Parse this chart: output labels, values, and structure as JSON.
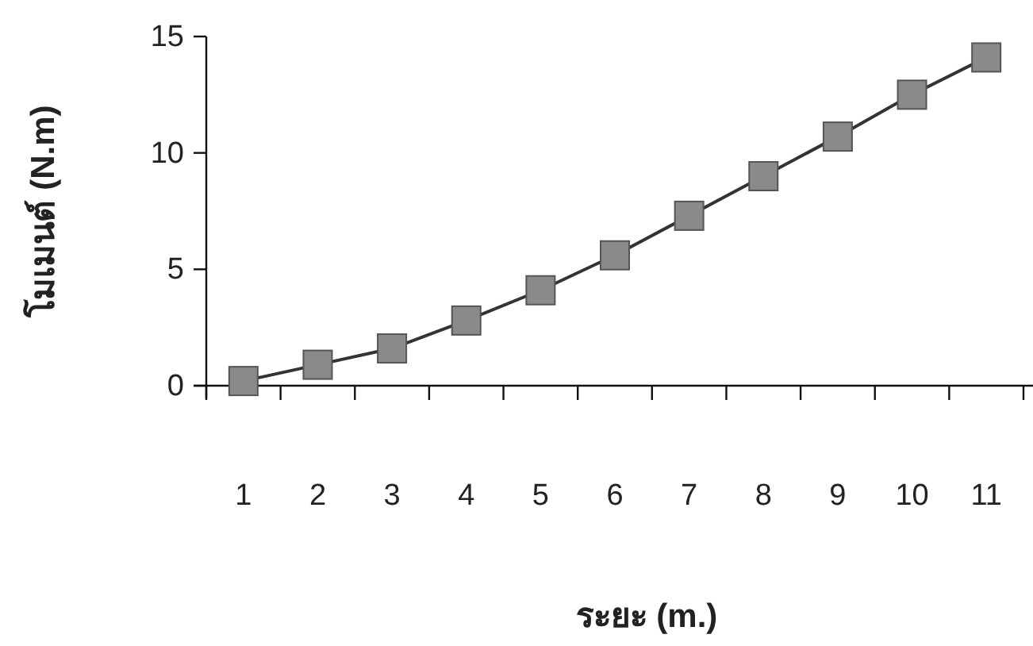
{
  "chart_data": {
    "type": "line",
    "xlabel": "ระยะ (m.)",
    "ylabel": "โมเมนต์ (N.m)",
    "categories": [
      "1",
      "2",
      "3",
      "4",
      "5",
      "6",
      "7",
      "8",
      "9",
      "10",
      "11"
    ],
    "series": [
      {
        "color": "#333333",
        "values": [
          0.2,
          0.9,
          1.6,
          2.8,
          4.1,
          5.6,
          7.3,
          9.0,
          10.7,
          12.5,
          14.1
        ]
      }
    ],
    "ylim": [
      0,
      15
    ],
    "yticks": [
      0,
      5,
      10,
      15
    ],
    "marker": "square",
    "line_style": "solid"
  }
}
